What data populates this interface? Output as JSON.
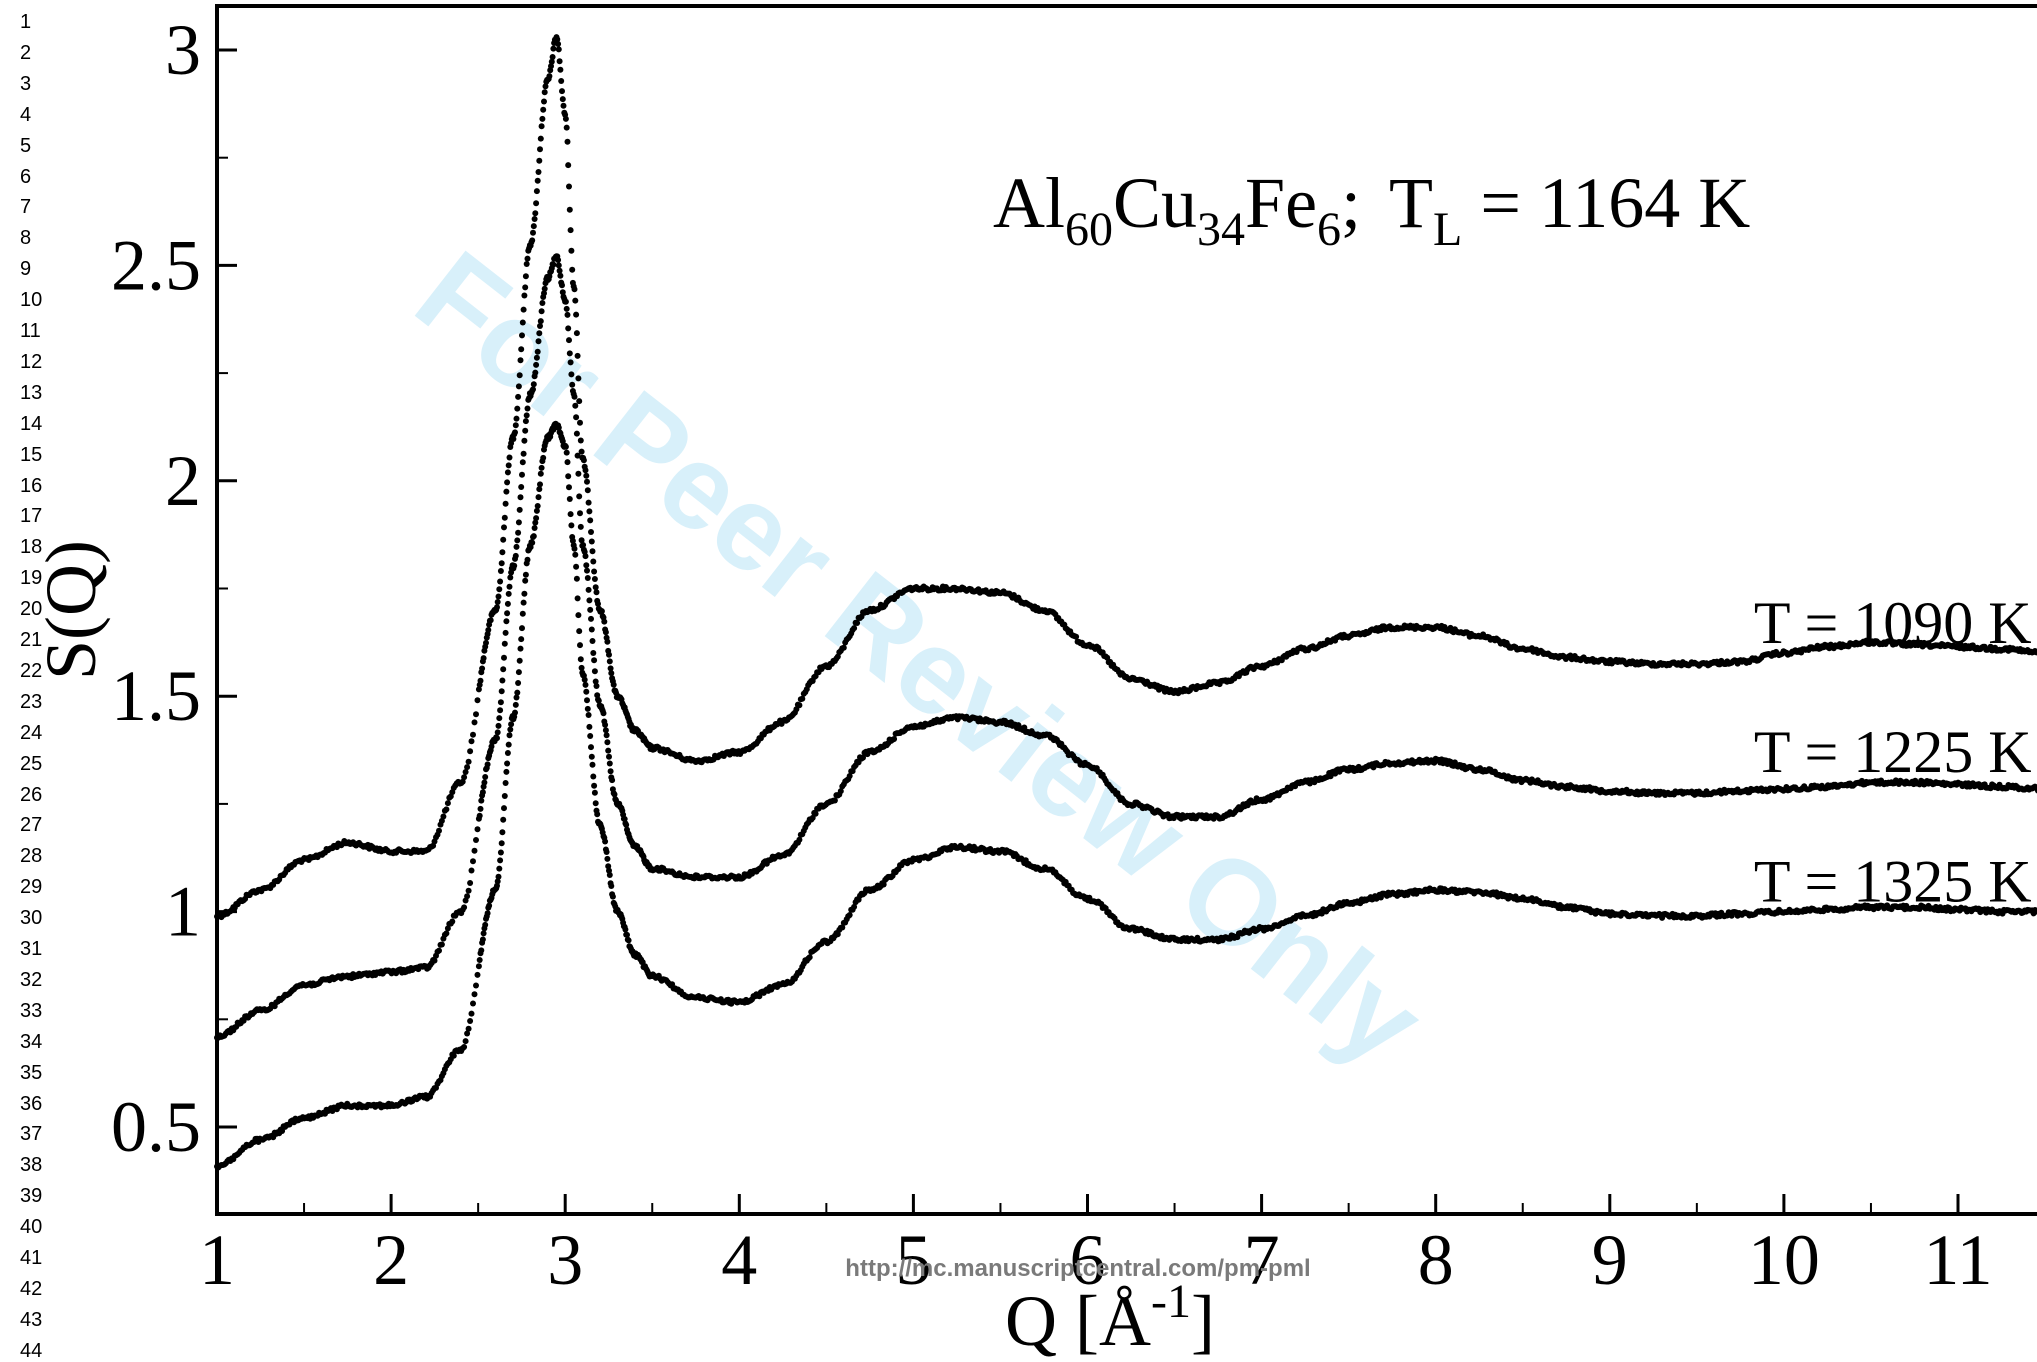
{
  "line_numbers": [
    "1",
    "2",
    "3",
    "4",
    "5",
    "6",
    "7",
    "8",
    "9",
    "10",
    "11",
    "12",
    "13",
    "14",
    "15",
    "16",
    "17",
    "18",
    "19",
    "20",
    "21",
    "22",
    "23",
    "24",
    "25",
    "26",
    "27",
    "28",
    "29",
    "30",
    "31",
    "32",
    "33",
    "34",
    "35",
    "36",
    "37",
    "38",
    "39",
    "40",
    "41",
    "42",
    "43",
    "44"
  ],
  "watermark": "For Peer Review Only",
  "footer_url": "http://mc.manuscriptcentral.com/pm-pml",
  "colors": {
    "points": "#000000",
    "watermark": "#29abe2",
    "footer": "#7a7a7a"
  },
  "chart_data": {
    "type": "scatter",
    "title": {
      "base1": "Al",
      "sub1": "60",
      "base2": "Cu",
      "sub2": "34",
      "base3": "Fe",
      "sub3": "6",
      "sep": ";",
      "tl_base": "T",
      "tl_sub": "L",
      "tl_value": " = 1164 K"
    },
    "xlabel": {
      "base": "Q [Å",
      "sup": "-1",
      "close": "]"
    },
    "ylabel": "S(Q)",
    "xlim": [
      1,
      12.0
    ],
    "ylim": [
      0.3,
      3.1
    ],
    "x_ticks": [
      1,
      2,
      3,
      4,
      5,
      6,
      7,
      8,
      9,
      10,
      11
    ],
    "x_tick_labels": [
      "1",
      "2",
      "3",
      "4",
      "5",
      "6",
      "7",
      "8",
      "9",
      "10",
      "11"
    ],
    "y_ticks": [
      0.5,
      1,
      1.5,
      2,
      2.5,
      3
    ],
    "y_tick_labels": [
      "0.5",
      "1",
      "1.5",
      "2",
      "2.5",
      "3"
    ],
    "grid": false,
    "series": [
      {
        "name": "T = 1090 K",
        "x": [
          1.0,
          1.25,
          1.5,
          1.75,
          2.0,
          2.2,
          2.4,
          2.6,
          2.7,
          2.8,
          2.9,
          2.95,
          3.0,
          3.05,
          3.1,
          3.2,
          3.3,
          3.4,
          3.5,
          3.75,
          4.0,
          4.25,
          4.5,
          4.75,
          5.0,
          5.25,
          5.5,
          5.75,
          6.0,
          6.25,
          6.5,
          6.75,
          7.0,
          7.25,
          7.5,
          7.75,
          8.0,
          8.25,
          8.5,
          8.75,
          9.0,
          9.25,
          9.5,
          9.75,
          10.0,
          10.25,
          10.5,
          10.75,
          11.0,
          11.25,
          11.5,
          11.75,
          12.0
        ],
        "y": [
          0.99,
          1.05,
          1.12,
          1.16,
          1.14,
          1.14,
          1.3,
          1.7,
          2.1,
          2.55,
          2.93,
          3.03,
          2.85,
          2.45,
          2.05,
          1.7,
          1.5,
          1.42,
          1.38,
          1.35,
          1.37,
          1.44,
          1.57,
          1.7,
          1.75,
          1.75,
          1.74,
          1.7,
          1.62,
          1.54,
          1.51,
          1.53,
          1.57,
          1.61,
          1.64,
          1.66,
          1.66,
          1.64,
          1.61,
          1.59,
          1.58,
          1.575,
          1.575,
          1.58,
          1.6,
          1.615,
          1.625,
          1.62,
          1.615,
          1.61,
          1.6,
          1.595,
          1.59
        ],
        "label_x": 10.0,
        "label_y": 1.67
      },
      {
        "name": "T = 1225 K",
        "x": [
          1.0,
          1.25,
          1.5,
          1.75,
          2.0,
          2.2,
          2.4,
          2.6,
          2.7,
          2.8,
          2.9,
          2.95,
          3.0,
          3.05,
          3.1,
          3.2,
          3.3,
          3.4,
          3.5,
          3.75,
          4.0,
          4.25,
          4.5,
          4.75,
          5.0,
          5.25,
          5.5,
          5.75,
          6.0,
          6.25,
          6.5,
          6.75,
          7.0,
          7.25,
          7.5,
          7.75,
          8.0,
          8.25,
          8.5,
          8.75,
          9.0,
          9.25,
          9.5,
          9.75,
          10.0,
          10.25,
          10.5,
          10.75,
          11.0,
          11.25,
          11.5,
          11.75,
          12.0
        ],
        "y": [
          0.71,
          0.77,
          0.83,
          0.85,
          0.86,
          0.87,
          1.0,
          1.4,
          1.8,
          2.2,
          2.47,
          2.52,
          2.42,
          2.2,
          1.85,
          1.48,
          1.25,
          1.15,
          1.1,
          1.08,
          1.08,
          1.13,
          1.25,
          1.37,
          1.43,
          1.45,
          1.44,
          1.41,
          1.34,
          1.25,
          1.22,
          1.22,
          1.26,
          1.3,
          1.33,
          1.345,
          1.35,
          1.33,
          1.305,
          1.29,
          1.28,
          1.275,
          1.275,
          1.28,
          1.285,
          1.29,
          1.3,
          1.3,
          1.295,
          1.29,
          1.285,
          1.28,
          1.28
        ],
        "label_x": 10.0,
        "label_y": 1.37
      },
      {
        "name": "T = 1325 K",
        "x": [
          1.0,
          1.25,
          1.5,
          1.75,
          2.0,
          2.2,
          2.4,
          2.6,
          2.7,
          2.8,
          2.9,
          2.95,
          3.0,
          3.05,
          3.1,
          3.2,
          3.3,
          3.4,
          3.5,
          3.75,
          4.0,
          4.25,
          4.5,
          4.75,
          5.0,
          5.25,
          5.5,
          5.75,
          6.0,
          6.25,
          6.5,
          6.75,
          7.0,
          7.25,
          7.5,
          7.75,
          8.0,
          8.25,
          8.5,
          8.75,
          9.0,
          9.25,
          9.5,
          9.75,
          10.0,
          10.25,
          10.5,
          10.75,
          11.0,
          11.25,
          11.5,
          11.75,
          12.0
        ],
        "y": [
          0.41,
          0.47,
          0.52,
          0.55,
          0.55,
          0.57,
          0.68,
          1.05,
          1.45,
          1.85,
          2.1,
          2.13,
          2.08,
          1.85,
          1.55,
          1.2,
          1.0,
          0.9,
          0.85,
          0.8,
          0.79,
          0.83,
          0.93,
          1.05,
          1.12,
          1.15,
          1.14,
          1.1,
          1.03,
          0.96,
          0.935,
          0.935,
          0.96,
          0.99,
          1.02,
          1.04,
          1.05,
          1.045,
          1.03,
          1.01,
          0.995,
          0.99,
          0.99,
          0.995,
          1.0,
          1.005,
          1.01,
          1.01,
          1.005,
          1.0,
          1.0,
          0.995,
          0.99
        ],
        "label_x": 10.0,
        "label_y": 1.07
      }
    ]
  }
}
